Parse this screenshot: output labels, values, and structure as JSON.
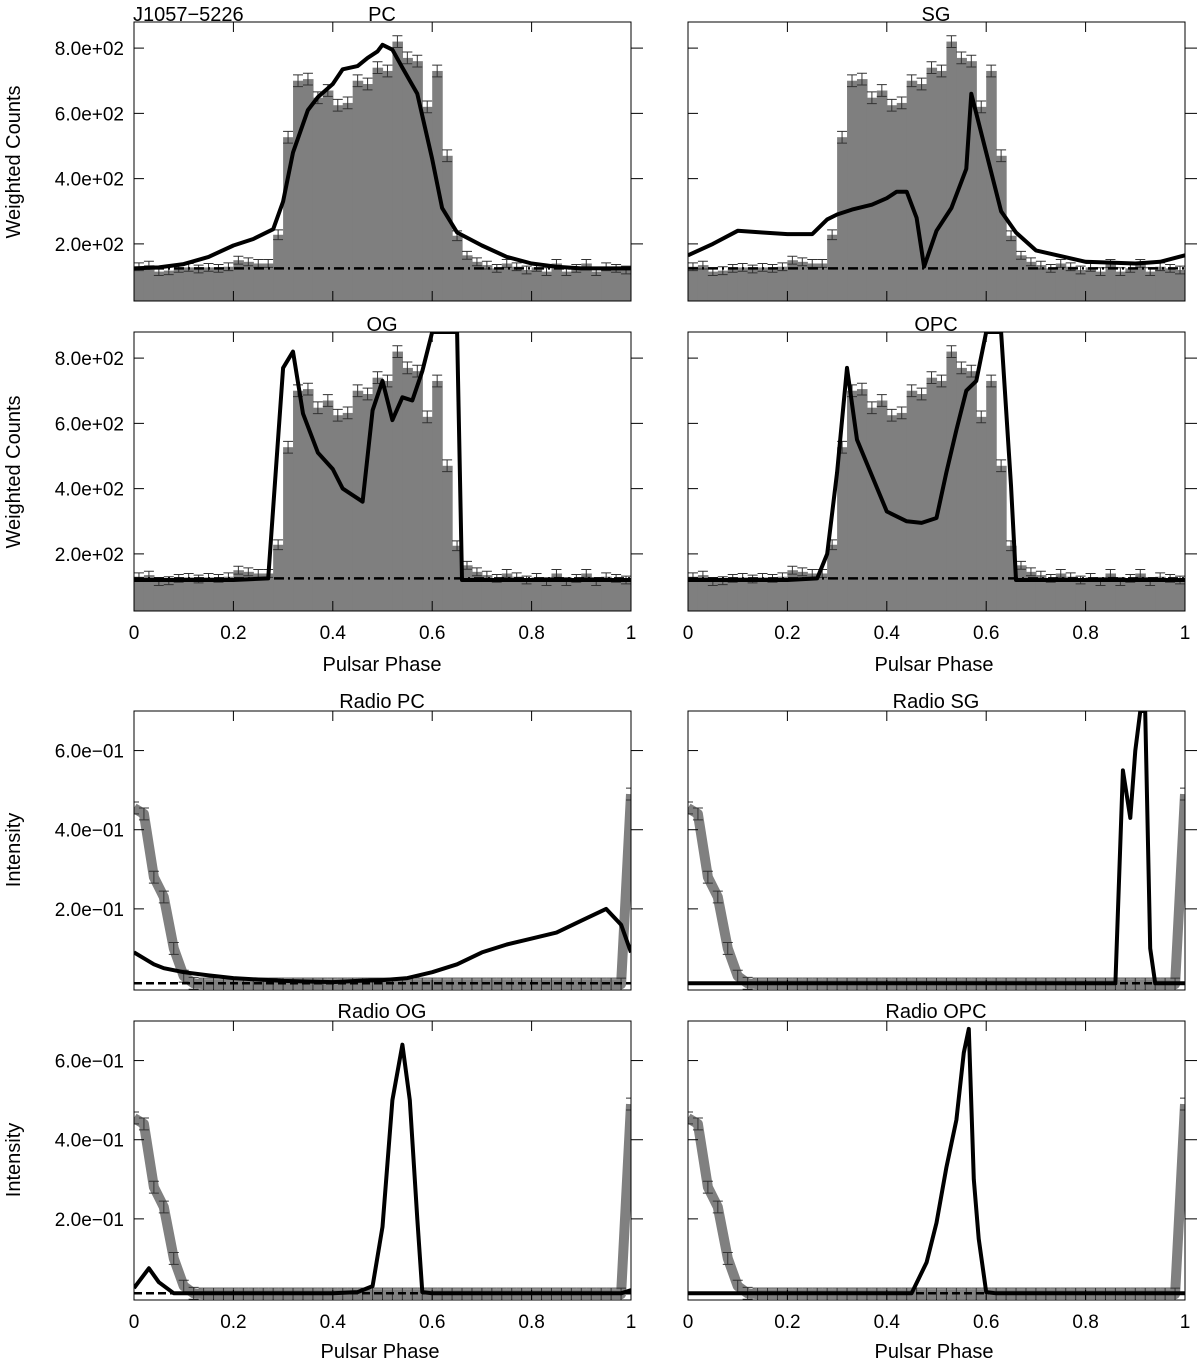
{
  "figure": {
    "pulsar_name": "J1057−5226",
    "xlabel": "Pulsar Phase",
    "ylabel_gamma": "Weighted Counts",
    "ylabel_radio": "Intensity"
  },
  "chart_data": {
    "type": "multi-panel light curves (histogram + model lines)",
    "x_range": [
      0,
      1
    ],
    "x_ticks": [
      "0",
      "0.2",
      "0.4",
      "0.6",
      "0.8",
      "1"
    ],
    "gamma": {
      "ylim": [
        25,
        880
      ],
      "y_ticks": [
        200,
        400,
        600,
        800
      ],
      "y_tick_labels": [
        "2.0e+02",
        "4.0e+02",
        "6.0e+02",
        "8.0e+02"
      ],
      "background_level": 125,
      "bin_width": 0.02,
      "histogram": [
        130,
        135,
        115,
        118,
        125,
        128,
        123,
        128,
        125,
        130,
        150,
        145,
        140,
        140,
        228,
        527,
        700,
        705,
        648,
        670,
        625,
        632,
        700,
        690,
        740,
        730,
        820,
        770,
        760,
        620,
        730,
        470,
        225,
        165,
        145,
        135,
        125,
        140,
        130,
        120,
        128,
        115,
        140,
        115,
        125,
        140,
        115,
        130,
        125,
        120
      ],
      "errors": [
        12,
        12,
        12,
        12,
        12,
        12,
        12,
        12,
        12,
        12,
        12,
        12,
        12,
        12,
        15,
        18,
        18,
        18,
        18,
        18,
        18,
        18,
        18,
        18,
        18,
        18,
        18,
        18,
        18,
        18,
        18,
        18,
        15,
        12,
        12,
        12,
        12,
        12,
        12,
        12,
        12,
        12,
        12,
        12,
        12,
        12,
        12,
        12,
        12,
        12
      ]
    },
    "radio": {
      "ylim": [
        -5,
        700
      ],
      "y_ticks": [
        200,
        400,
        600
      ],
      "y_tick_labels": [
        "2.0e−01",
        "4.0e−01",
        "6.0e−01"
      ],
      "background_level": 12,
      "x": [
        0,
        0.02,
        0.04,
        0.06,
        0.08,
        0.1,
        0.12,
        0.14,
        0.16,
        0.18,
        0.2,
        0.22,
        0.24,
        0.26,
        0.28,
        0.3,
        0.32,
        0.34,
        0.36,
        0.38,
        0.4,
        0.42,
        0.44,
        0.46,
        0.48,
        0.5,
        0.52,
        0.54,
        0.56,
        0.58,
        0.6,
        0.62,
        0.64,
        0.66,
        0.68,
        0.7,
        0.72,
        0.74,
        0.76,
        0.78,
        0.8,
        0.82,
        0.84,
        0.86,
        0.88,
        0.9,
        0.92,
        0.94,
        0.96,
        0.98,
        1
      ],
      "profile": [
        455,
        440,
        280,
        230,
        100,
        30,
        12,
        10,
        10,
        10,
        10,
        10,
        10,
        10,
        10,
        10,
        10,
        10,
        10,
        10,
        10,
        10,
        10,
        10,
        10,
        10,
        10,
        10,
        10,
        10,
        10,
        10,
        10,
        10,
        10,
        10,
        10,
        10,
        10,
        10,
        10,
        10,
        10,
        10,
        10,
        10,
        10,
        10,
        10,
        10,
        490
      ],
      "errors": [
        15,
        15,
        15,
        15,
        15,
        15,
        15,
        15,
        15,
        15,
        15,
        15,
        15,
        15,
        15,
        15,
        15,
        15,
        15,
        15,
        15,
        15,
        15,
        15,
        15,
        15,
        15,
        15,
        15,
        15,
        15,
        15,
        15,
        15,
        15,
        15,
        15,
        15,
        15,
        15,
        15,
        15,
        15,
        15,
        15,
        15,
        15,
        15,
        15,
        15,
        15
      ]
    },
    "panels": [
      {
        "id": "pc",
        "group": "gamma",
        "title": "PC",
        "x": [
          0,
          0.05,
          0.1,
          0.15,
          0.2,
          0.24,
          0.28,
          0.3,
          0.32,
          0.35,
          0.37,
          0.4,
          0.42,
          0.45,
          0.47,
          0.49,
          0.5,
          0.52,
          0.54,
          0.57,
          0.6,
          0.62,
          0.65,
          0.7,
          0.75,
          0.8,
          0.85,
          0.9,
          0.95,
          1
        ],
        "y": [
          125,
          128,
          138,
          160,
          195,
          215,
          245,
          330,
          480,
          610,
          650,
          690,
          735,
          745,
          770,
          790,
          810,
          795,
          740,
          660,
          460,
          310,
          235,
          195,
          160,
          140,
          130,
          125,
          125,
          125
        ]
      },
      {
        "id": "sg",
        "group": "gamma",
        "title": "SG",
        "x": [
          0,
          0.05,
          0.1,
          0.15,
          0.2,
          0.25,
          0.28,
          0.3,
          0.33,
          0.37,
          0.4,
          0.42,
          0.44,
          0.46,
          0.475,
          0.5,
          0.53,
          0.56,
          0.57,
          0.6,
          0.63,
          0.66,
          0.7,
          0.8,
          0.9,
          0.95,
          1
        ],
        "y": [
          165,
          200,
          240,
          235,
          230,
          230,
          275,
          290,
          305,
          320,
          340,
          360,
          360,
          280,
          130,
          240,
          310,
          430,
          660,
          480,
          300,
          235,
          180,
          145,
          140,
          145,
          165
        ]
      },
      {
        "id": "og",
        "group": "gamma",
        "title": "OG",
        "x": [
          0,
          0.1,
          0.2,
          0.27,
          0.3,
          0.32,
          0.34,
          0.37,
          0.4,
          0.42,
          0.44,
          0.46,
          0.48,
          0.5,
          0.52,
          0.54,
          0.56,
          0.58,
          0.6,
          0.61,
          0.625,
          0.63,
          0.65,
          0.66,
          0.7,
          0.8,
          0.9,
          1
        ],
        "y": [
          120,
          120,
          120,
          125,
          770,
          820,
          630,
          510,
          460,
          400,
          380,
          360,
          640,
          730,
          610,
          680,
          670,
          760,
          880,
          880,
          880,
          880,
          880,
          120,
          120,
          120,
          120,
          120
        ]
      },
      {
        "id": "opc",
        "group": "gamma",
        "title": "OPC",
        "x": [
          0,
          0.1,
          0.2,
          0.26,
          0.28,
          0.3,
          0.32,
          0.34,
          0.37,
          0.4,
          0.44,
          0.47,
          0.5,
          0.52,
          0.54,
          0.56,
          0.58,
          0.6,
          0.63,
          0.65,
          0.66,
          0.7,
          0.8,
          0.9,
          1
        ],
        "y": [
          120,
          120,
          120,
          125,
          200,
          450,
          770,
          550,
          440,
          330,
          300,
          295,
          310,
          450,
          580,
          700,
          730,
          880,
          880,
          410,
          120,
          120,
          120,
          120,
          120
        ]
      },
      {
        "id": "rpc",
        "group": "radio",
        "title": "Radio PC",
        "x": [
          0,
          0.02,
          0.04,
          0.06,
          0.1,
          0.15,
          0.2,
          0.3,
          0.4,
          0.45,
          0.5,
          0.55,
          0.6,
          0.65,
          0.7,
          0.75,
          0.8,
          0.85,
          0.9,
          0.95,
          0.98,
          1
        ],
        "y": [
          90,
          75,
          60,
          50,
          40,
          32,
          25,
          18,
          15,
          18,
          20,
          25,
          40,
          60,
          90,
          110,
          125,
          140,
          170,
          200,
          160,
          90
        ]
      },
      {
        "id": "rsg",
        "group": "radio",
        "title": "Radio SG",
        "x": [
          0,
          0.1,
          0.2,
          0.3,
          0.4,
          0.5,
          0.6,
          0.7,
          0.8,
          0.85,
          0.86,
          0.875,
          0.89,
          0.9,
          0.91,
          0.92,
          0.93,
          0.94,
          0.95,
          0.96,
          1
        ],
        "y": [
          12,
          12,
          12,
          12,
          12,
          12,
          12,
          12,
          12,
          12,
          12,
          550,
          430,
          600,
          700,
          700,
          100,
          12,
          12,
          12,
          12
        ]
      },
      {
        "id": "rog",
        "group": "radio",
        "title": "Radio OG",
        "x": [
          0,
          0.03,
          0.05,
          0.08,
          0.1,
          0.2,
          0.3,
          0.4,
          0.45,
          0.48,
          0.5,
          0.52,
          0.54,
          0.555,
          0.57,
          0.58,
          0.6,
          0.7,
          0.8,
          0.9,
          0.98,
          1
        ],
        "y": [
          25,
          75,
          40,
          12,
          12,
          12,
          12,
          12,
          15,
          30,
          180,
          500,
          640,
          500,
          200,
          15,
          12,
          12,
          12,
          12,
          12,
          20
        ]
      },
      {
        "id": "ropc",
        "group": "radio",
        "title": "Radio OPC",
        "x": [
          0,
          0.1,
          0.2,
          0.3,
          0.4,
          0.45,
          0.48,
          0.5,
          0.52,
          0.54,
          0.555,
          0.565,
          0.575,
          0.585,
          0.6,
          0.62,
          0.7,
          0.8,
          0.9,
          1
        ],
        "y": [
          12,
          12,
          12,
          12,
          12,
          12,
          90,
          190,
          330,
          450,
          620,
          680,
          300,
          150,
          15,
          12,
          12,
          12,
          12,
          12
        ]
      }
    ]
  }
}
